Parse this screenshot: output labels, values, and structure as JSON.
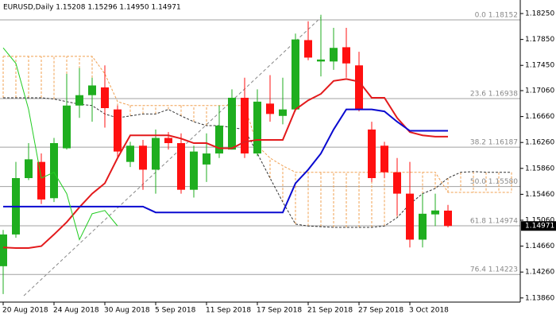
{
  "chart_data": {
    "type": "candlestick",
    "title": "EURUSD,Daily  1.15208 1.15296 1.14950 1.14971",
    "categories": [
      null,
      null,
      null,
      null,
      null,
      null,
      null,
      null,
      null,
      null,
      null,
      null,
      null,
      null,
      null,
      null,
      null,
      null,
      null,
      null,
      null,
      null,
      null,
      null,
      null,
      null,
      null,
      null,
      null,
      null,
      null,
      null,
      null,
      null,
      null,
      null,
      null,
      null,
      null,
      null,
      null
    ],
    "x_labels": [
      "20 Aug 2018",
      null,
      null,
      null,
      "24 Aug 2018",
      null,
      null,
      null,
      "30 Aug 2018",
      null,
      null,
      null,
      "5 Sep 2018",
      null,
      null,
      null,
      "11 Sep 2018",
      null,
      null,
      null,
      "17 Sep 2018",
      null,
      null,
      null,
      "21 Sep 2018",
      null,
      null,
      null,
      "27 Sep 2018",
      null,
      null,
      null,
      "3 Oct 2018",
      null,
      null,
      null,
      null,
      null,
      null,
      null,
      null
    ],
    "open": [
      1.1435,
      1.1484,
      1.1571,
      1.1596,
      1.154,
      1.1617,
      1.1683,
      1.1699,
      1.1711,
      1.1677,
      1.1596,
      1.1621,
      1.1584,
      1.1633,
      1.1625,
      1.1553,
      1.1592,
      1.1609,
      1.1615,
      1.1695,
      1.1609,
      1.1686,
      1.1667,
      1.1677,
      1.1784,
      1.1751,
      1.1751,
      1.1773,
      1.1745,
      1.1646,
      1.1621,
      1.158,
      1.1547,
      1.1476,
      1.1515,
      1.15208,
      null,
      null,
      null,
      null,
      null
    ],
    "high": [
      1.1491,
      1.1596,
      1.1625,
      1.1609,
      1.1633,
      1.1732,
      1.1741,
      1.1726,
      1.1745,
      1.1683,
      1.1627,
      1.163,
      1.1646,
      1.1642,
      1.164,
      1.1621,
      1.164,
      1.1683,
      1.1708,
      1.1726,
      1.1708,
      1.173,
      1.1726,
      1.1794,
      1.1813,
      1.1823,
      1.1803,
      1.1803,
      1.1766,
      1.1658,
      1.1627,
      1.1602,
      1.1596,
      1.1547,
      1.1547,
      1.15296,
      null,
      null,
      null,
      null,
      null
    ],
    "low": [
      1.1392,
      1.1479,
      1.1568,
      1.1531,
      1.1534,
      1.1615,
      1.1664,
      1.1658,
      1.1649,
      1.1602,
      1.1588,
      1.1553,
      1.1547,
      1.1615,
      1.1547,
      1.1541,
      1.1565,
      1.1602,
      1.1615,
      1.1602,
      1.1605,
      1.1658,
      1.1654,
      1.1674,
      1.1753,
      1.1728,
      1.1738,
      1.1726,
      1.1674,
      1.1565,
      1.1571,
      1.1513,
      1.1464,
      1.1464,
      1.1497,
      1.1495,
      null,
      null,
      null,
      null,
      null
    ],
    "close": [
      1.1484,
      1.1571,
      1.16,
      1.1538,
      1.1625,
      1.1683,
      1.1699,
      1.1714,
      1.1679,
      1.1612,
      1.1621,
      1.1584,
      1.1633,
      1.1625,
      1.1553,
      1.1612,
      1.1609,
      1.1652,
      1.1695,
      1.1609,
      1.1689,
      1.167,
      1.1677,
      1.1785,
      1.1757,
      1.1754,
      1.1772,
      1.1748,
      1.1677,
      1.1571,
      1.158,
      1.1547,
      1.1476,
      1.1516,
      1.1521,
      1.14971,
      null,
      null,
      null,
      null,
      null
    ],
    "up_color": "#1fae1f",
    "down_color": "#ff1010",
    "lines": [
      {
        "color": "#e31a1c",
        "style": "solid",
        "width": 2,
        "values": [
          1.1464,
          1.1463,
          1.1463,
          1.1466,
          1.1484,
          1.1503,
          1.1526,
          1.1547,
          1.1563,
          1.1602,
          1.1637,
          1.1637,
          1.1637,
          1.1637,
          1.1632,
          1.1625,
          1.1625,
          1.1617,
          1.1617,
          1.1627,
          1.163,
          1.163,
          1.163,
          1.1677,
          1.1691,
          1.1701,
          1.1721,
          1.1724,
          1.172,
          1.1695,
          1.1695,
          1.1664,
          1.1642,
          1.1637,
          1.1635,
          1.1635,
          null,
          null,
          null,
          null,
          null
        ]
      },
      {
        "color": "#0a0ad0",
        "style": "solid",
        "width": 2,
        "values": [
          1.1527,
          1.1527,
          1.1527,
          1.1527,
          1.1527,
          1.1527,
          1.1527,
          1.1527,
          1.1527,
          1.1527,
          1.1527,
          1.1527,
          1.1518,
          1.1518,
          1.1518,
          1.1518,
          1.1518,
          1.1518,
          1.1518,
          1.1518,
          1.1518,
          1.1518,
          1.1518,
          1.1563,
          1.1584,
          1.1609,
          1.1646,
          1.1677,
          1.1677,
          1.1677,
          1.1674,
          1.1658,
          1.1644,
          1.1644,
          1.1644,
          1.1644,
          null,
          null,
          null,
          null,
          null
        ]
      },
      {
        "color": "#22cc22",
        "style": "solid",
        "width": 1,
        "values": [
          1.1772,
          1.1748,
          1.1677,
          1.1571,
          1.158,
          1.1547,
          1.1476,
          1.1516,
          1.1521,
          1.14971,
          null,
          null,
          null,
          null,
          null,
          null,
          null,
          null,
          null,
          null,
          null,
          null,
          null,
          null,
          null,
          null,
          null,
          null,
          null,
          null,
          null,
          null,
          null,
          null,
          null,
          null,
          null,
          null,
          null,
          null,
          null
        ]
      }
    ],
    "cloud": {
      "color": "#f0a050",
      "edge_color": "#333333",
      "span_a": [
        1.1695,
        1.1695,
        1.1695,
        1.1695,
        1.1693,
        1.1689,
        1.1685,
        1.1683,
        1.167,
        1.1664,
        1.1667,
        1.167,
        1.167,
        1.1677,
        1.1667,
        1.1658,
        1.1652,
        1.1652,
        1.1649,
        1.1646,
        1.1609,
        1.1571,
        1.1534,
        1.15,
        1.1497,
        1.1496,
        1.1495,
        1.1495,
        1.1495,
        1.1495,
        1.1497,
        1.151,
        1.1531,
        1.1547,
        1.1555,
        1.1571,
        1.158,
        1.1581,
        1.158,
        1.158,
        1.158
      ],
      "span_b": [
        1.1759,
        1.1759,
        1.1759,
        1.1759,
        1.1759,
        1.1759,
        1.1759,
        1.1759,
        1.1732,
        1.1689,
        1.1683,
        1.1683,
        1.1683,
        1.1683,
        1.1683,
        1.1683,
        1.1683,
        1.1683,
        1.1683,
        1.1683,
        1.1621,
        1.1602,
        1.159,
        1.158,
        1.158,
        1.158,
        1.158,
        1.158,
        1.158,
        1.158,
        1.158,
        1.158,
        1.158,
        1.158,
        1.158,
        1.1549,
        1.1549,
        1.1549,
        1.1549,
        1.1549,
        1.1549
      ]
    },
    "fib_levels": [
      {
        "value": 1.18152,
        "label": "0.0 1.18152"
      },
      {
        "value": 1.16938,
        "label": "23.6 1.16938"
      },
      {
        "value": 1.16187,
        "label": "38.2 1.16187"
      },
      {
        "value": 1.1558,
        "label": "50.0 1.15580"
      },
      {
        "value": 1.14974,
        "label": "61.8 1.14974"
      },
      {
        "value": 1.14223,
        "label": "76.4 1.14223"
      }
    ],
    "last_price": 1.14971,
    "ylim": [
      1.13796,
      1.18459
    ],
    "yticks": [
      {
        "value": 1.1825,
        "label": "1.18250"
      },
      {
        "value": 1.1785,
        "label": "1.17850"
      },
      {
        "value": 1.1745,
        "label": "1.17450"
      },
      {
        "value": 1.1706,
        "label": "1.17060"
      },
      {
        "value": 1.1666,
        "label": "1.16660"
      },
      {
        "value": 1.1626,
        "label": "1.16260"
      },
      {
        "value": 1.1586,
        "label": "1.15860"
      },
      {
        "value": 1.1546,
        "label": "1.15460"
      },
      {
        "value": 1.1506,
        "label": "1.15060"
      },
      {
        "value": 1.1466,
        "label": "1.14660"
      },
      {
        "value": 1.1426,
        "label": "1.14260"
      },
      {
        "value": 1.1386,
        "label": "1.13860"
      }
    ]
  }
}
